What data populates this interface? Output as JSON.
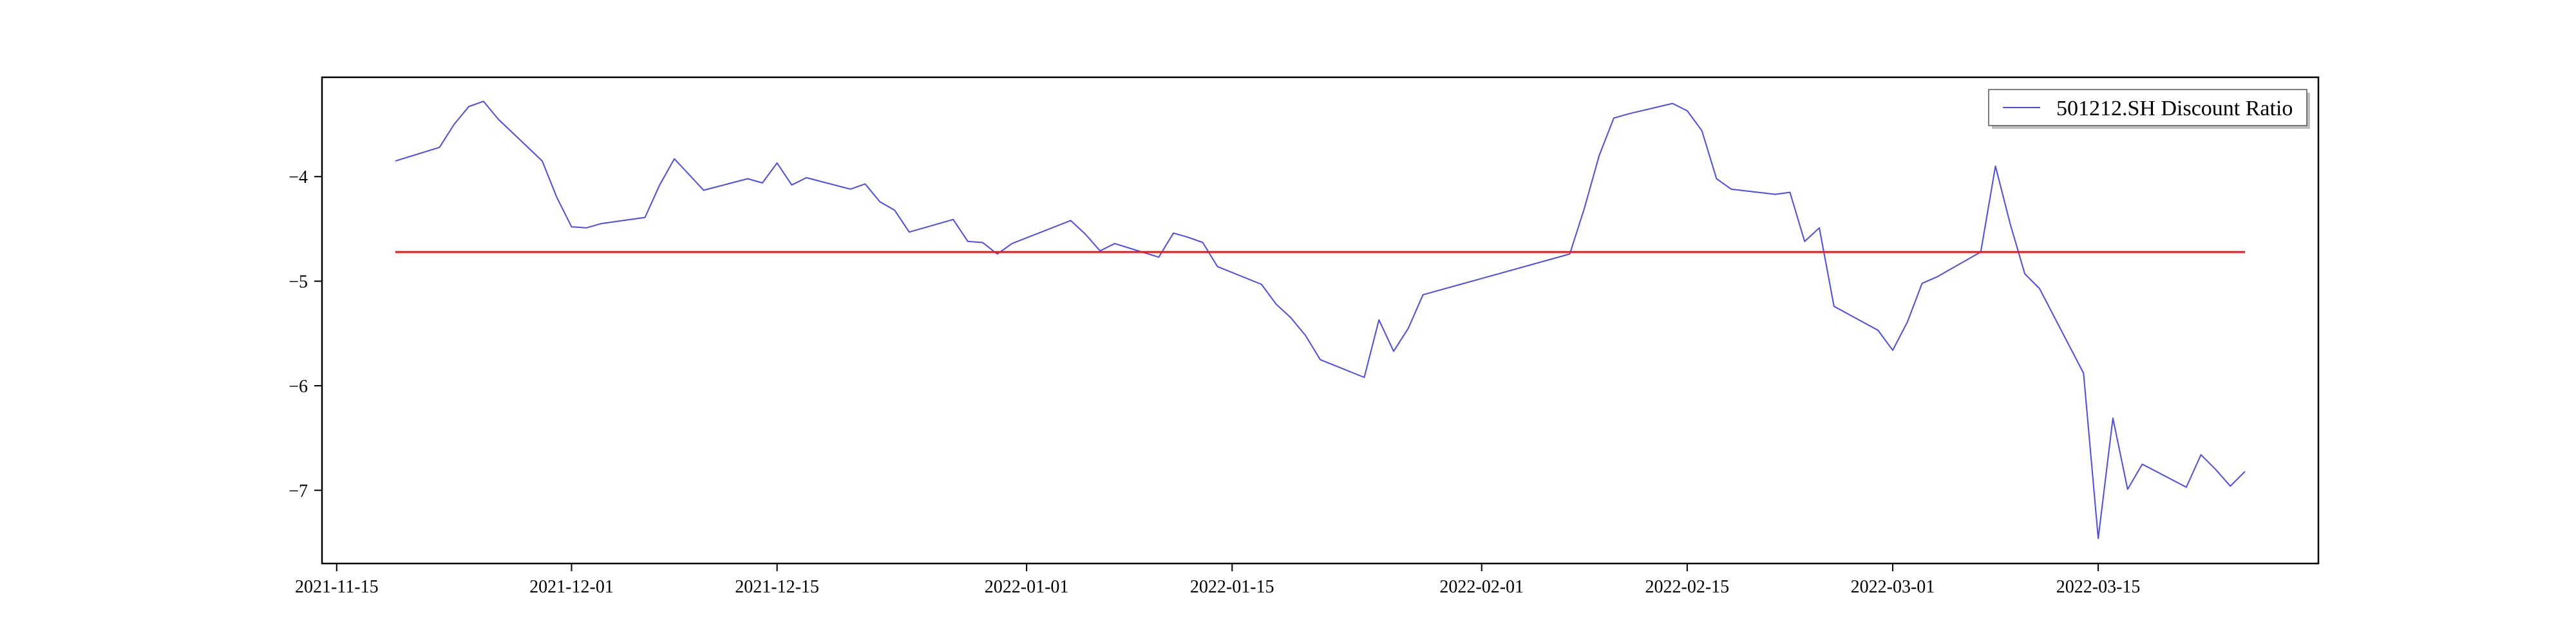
{
  "chart_data": {
    "type": "line",
    "title": "",
    "xlabel": "",
    "ylabel": "",
    "xlim": [
      "2021-11-14",
      "2022-03-30"
    ],
    "ylim": [
      -7.7,
      -3.05
    ],
    "x_ticks": [
      "2021-11-15",
      "2021-12-01",
      "2021-12-15",
      "2022-01-01",
      "2022-01-15",
      "2022-02-01",
      "2022-02-15",
      "2022-03-01",
      "2022-03-15"
    ],
    "y_ticks": [
      -4,
      -5,
      -6,
      -7
    ],
    "legend": {
      "placement": "upper-right"
    },
    "grid": false,
    "series": [
      {
        "name": "501212.SH Discount Ratio",
        "color": "#4b4bf0",
        "x": [
          "2021-11-19",
          "2021-11-22",
          "2021-11-23",
          "2021-11-24",
          "2021-11-25",
          "2021-11-26",
          "2021-11-29",
          "2021-11-30",
          "2021-12-01",
          "2021-12-02",
          "2021-12-03",
          "2021-12-06",
          "2021-12-07",
          "2021-12-08",
          "2021-12-09",
          "2021-12-10",
          "2021-12-13",
          "2021-12-14",
          "2021-12-15",
          "2021-12-16",
          "2021-12-17",
          "2021-12-20",
          "2021-12-21",
          "2021-12-22",
          "2021-12-23",
          "2021-12-24",
          "2021-12-27",
          "2021-12-28",
          "2021-12-29",
          "2021-12-30",
          "2021-12-31",
          "2022-01-04",
          "2022-01-05",
          "2022-01-06",
          "2022-01-07",
          "2022-01-10",
          "2022-01-11",
          "2022-01-12",
          "2022-01-13",
          "2022-01-14",
          "2022-01-17",
          "2022-01-18",
          "2022-01-19",
          "2022-01-20",
          "2022-01-21",
          "2022-01-24",
          "2022-01-25",
          "2022-01-26",
          "2022-01-27",
          "2022-01-28",
          "2022-02-07",
          "2022-02-08",
          "2022-02-09",
          "2022-02-10",
          "2022-02-11",
          "2022-02-14",
          "2022-02-15",
          "2022-02-16",
          "2022-02-17",
          "2022-02-18",
          "2022-02-21",
          "2022-02-22",
          "2022-02-23",
          "2022-02-24",
          "2022-02-25",
          "2022-02-28",
          "2022-03-01",
          "2022-03-02",
          "2022-03-03",
          "2022-03-04",
          "2022-03-07",
          "2022-03-08",
          "2022-03-09",
          "2022-03-10",
          "2022-03-11",
          "2022-03-14",
          "2022-03-15",
          "2022-03-16",
          "2022-03-17",
          "2022-03-18",
          "2022-03-21",
          "2022-03-22",
          "2022-03-23",
          "2022-03-24",
          "2022-03-25"
        ],
        "y": [
          -3.85,
          -3.72,
          -3.5,
          -3.33,
          -3.28,
          -3.45,
          -3.85,
          -4.2,
          -4.48,
          -4.49,
          -4.45,
          -4.39,
          -4.08,
          -3.83,
          -3.98,
          -4.13,
          -4.02,
          -4.06,
          -3.87,
          -4.08,
          -4.01,
          -4.12,
          -4.07,
          -4.24,
          -4.32,
          -4.53,
          -4.41,
          -4.62,
          -4.63,
          -4.74,
          -4.64,
          -4.42,
          -4.55,
          -4.71,
          -4.64,
          -4.77,
          -4.54,
          -4.58,
          -4.63,
          -4.86,
          -5.03,
          -5.22,
          -5.35,
          -5.52,
          -5.75,
          -5.92,
          -5.37,
          -5.67,
          -5.45,
          -5.13,
          -4.74,
          -4.3,
          -3.8,
          -3.44,
          -3.4,
          -3.3,
          -3.37,
          -3.56,
          -4.02,
          -4.12,
          -4.17,
          -4.15,
          -4.62,
          -4.49,
          -5.24,
          -5.47,
          -5.66,
          -5.39,
          -5.02,
          -4.96,
          -4.72,
          -3.9,
          -4.45,
          -4.93,
          -5.07,
          -5.88,
          -7.46,
          -6.31,
          -6.99,
          -6.75,
          -6.97,
          -6.66,
          -6.8,
          -6.96,
          -6.82
        ]
      },
      {
        "name": "",
        "color": "#e02020",
        "x": [
          "2021-11-19",
          "2022-03-25"
        ],
        "y": [
          -4.72,
          -4.72
        ]
      }
    ]
  }
}
